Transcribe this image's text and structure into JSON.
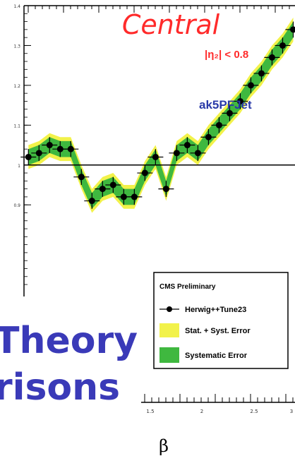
{
  "texts": {
    "region": "Central",
    "eta_cut": "|η₂| < 0.8",
    "jet_algo": "ak5PFJet",
    "overlay_line1": "Theory",
    "overlay_line2": "risons",
    "xlabel": "β"
  },
  "legend": {
    "header": "CMS Preliminary",
    "entries": [
      "Herwig++Tune23",
      "Stat. + Syst. Error",
      "Systematic Error"
    ]
  },
  "colors": {
    "region_text": "#ff2a2a",
    "jet_text": "#2a3aa8",
    "overlay_text": "#3a3ab8",
    "stat_syst_band": "#f2f24a",
    "syst_band": "#3fb83f",
    "markers": "#000000"
  },
  "chart_data": {
    "type": "line",
    "title": "",
    "xlabel": "β",
    "ylabel": "",
    "xlim": [
      0,
      3.07
    ],
    "ylim": [
      0.67,
      1.4
    ],
    "x_ticks": [
      "1.5",
      "2",
      "2.5",
      "3"
    ],
    "y_ticks": [
      "1.4",
      "1.3",
      "1.2",
      "1.1",
      "1",
      "0.9"
    ],
    "reference_line": 1,
    "grid": false,
    "legend_position": "bottom-right",
    "series": [
      {
        "name": "Herwig++Tune23",
        "x": [
          0.05,
          0.17,
          0.29,
          0.41,
          0.53,
          0.65,
          0.77,
          0.89,
          1.01,
          1.13,
          1.25,
          1.37,
          1.49,
          1.61,
          1.73,
          1.85,
          1.97,
          2.09,
          2.21,
          2.33,
          2.45,
          2.57,
          2.69,
          2.81,
          2.93,
          3.05
        ],
        "y": [
          1.02,
          1.03,
          1.05,
          1.04,
          1.04,
          0.97,
          0.91,
          0.94,
          0.95,
          0.92,
          0.92,
          0.98,
          1.02,
          0.94,
          1.03,
          1.05,
          1.03,
          1.07,
          1.1,
          1.13,
          1.16,
          1.2,
          1.23,
          1.27,
          1.3,
          1.34
        ],
        "err": [
          0.02,
          0.02,
          0.02,
          0.02,
          0.02,
          0.02,
          0.02,
          0.02,
          0.02,
          0.02,
          0.02,
          0.02,
          0.02,
          0.02,
          0.02,
          0.02,
          0.02,
          0.02,
          0.02,
          0.02,
          0.02,
          0.02,
          0.02,
          0.02,
          0.02,
          0.02
        ]
      }
    ],
    "bands": [
      {
        "name": "Stat. + Syst. Error",
        "x": [
          0.05,
          0.17,
          0.29,
          0.41,
          0.53,
          0.65,
          0.77,
          0.89,
          1.01,
          1.13,
          1.25,
          1.37,
          1.49,
          1.61,
          1.73,
          1.85,
          1.97,
          2.09,
          2.21,
          2.33,
          2.45,
          2.57,
          2.69,
          2.81,
          2.93,
          3.05
        ],
        "lower": [
          0.99,
          1.0,
          1.02,
          1.01,
          1.01,
          0.94,
          0.88,
          0.91,
          0.92,
          0.89,
          0.89,
          0.95,
          0.99,
          0.91,
          1.0,
          1.02,
          1.0,
          1.04,
          1.07,
          1.1,
          1.13,
          1.17,
          1.2,
          1.24,
          1.27,
          1.31
        ],
        "upper": [
          1.05,
          1.06,
          1.08,
          1.07,
          1.07,
          1.0,
          0.94,
          0.97,
          0.98,
          0.95,
          0.95,
          1.01,
          1.05,
          0.97,
          1.06,
          1.08,
          1.06,
          1.1,
          1.13,
          1.16,
          1.19,
          1.23,
          1.26,
          1.3,
          1.33,
          1.37
        ]
      },
      {
        "name": "Systematic Error",
        "x": [
          0.05,
          0.17,
          0.29,
          0.41,
          0.53,
          0.65,
          0.77,
          0.89,
          1.01,
          1.13,
          1.25,
          1.37,
          1.49,
          1.61,
          1.73,
          1.85,
          1.97,
          2.09,
          2.21,
          2.33,
          2.45,
          2.57,
          2.69,
          2.81,
          2.93,
          3.05
        ],
        "lower": [
          1.0,
          1.01,
          1.03,
          1.02,
          1.02,
          0.95,
          0.89,
          0.92,
          0.93,
          0.9,
          0.9,
          0.96,
          1.0,
          0.92,
          1.01,
          1.03,
          1.01,
          1.05,
          1.08,
          1.11,
          1.14,
          1.18,
          1.21,
          1.25,
          1.28,
          1.32
        ],
        "upper": [
          1.04,
          1.05,
          1.07,
          1.06,
          1.06,
          0.99,
          0.93,
          0.96,
          0.97,
          0.94,
          0.94,
          1.0,
          1.04,
          0.96,
          1.05,
          1.07,
          1.05,
          1.09,
          1.12,
          1.15,
          1.18,
          1.22,
          1.25,
          1.29,
          1.32,
          1.36
        ]
      }
    ]
  }
}
